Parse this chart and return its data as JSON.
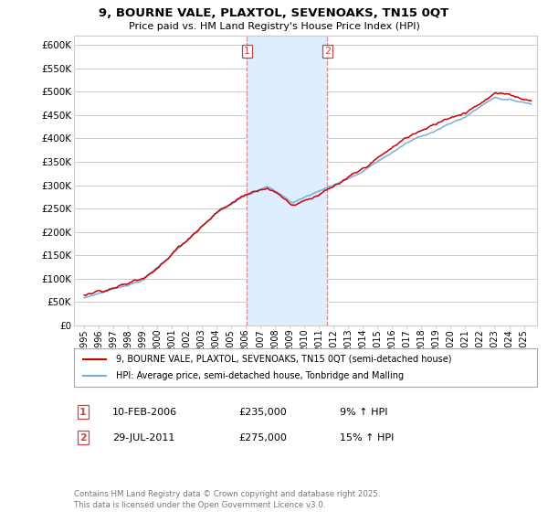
{
  "title": "9, BOURNE VALE, PLAXTOL, SEVENOAKS, TN15 0QT",
  "subtitle": "Price paid vs. HM Land Registry's House Price Index (HPI)",
  "legend_line1": "9, BOURNE VALE, PLAXTOL, SEVENOAKS, TN15 0QT (semi-detached house)",
  "legend_line2": "HPI: Average price, semi-detached house, Tonbridge and Malling",
  "footnote": "Contains HM Land Registry data © Crown copyright and database right 2025.\nThis data is licensed under the Open Government Licence v3.0.",
  "sale1_date": "10-FEB-2006",
  "sale1_price": "£235,000",
  "sale1_hpi": "9% ↑ HPI",
  "sale2_date": "29-JUL-2011",
  "sale2_price": "£275,000",
  "sale2_hpi": "15% ↑ HPI",
  "red_color": "#cc0000",
  "blue_color": "#7aadda",
  "vline_color": "#dd8888",
  "shade_color": "#ddeeff",
  "grid_color": "#cccccc",
  "bg_color": "#ffffff",
  "ylim": [
    0,
    620000
  ],
  "yticks": [
    0,
    50000,
    100000,
    150000,
    200000,
    250000,
    300000,
    350000,
    400000,
    450000,
    500000,
    550000,
    600000
  ],
  "sale1_x": 2006.1,
  "sale2_x": 2011.58
}
